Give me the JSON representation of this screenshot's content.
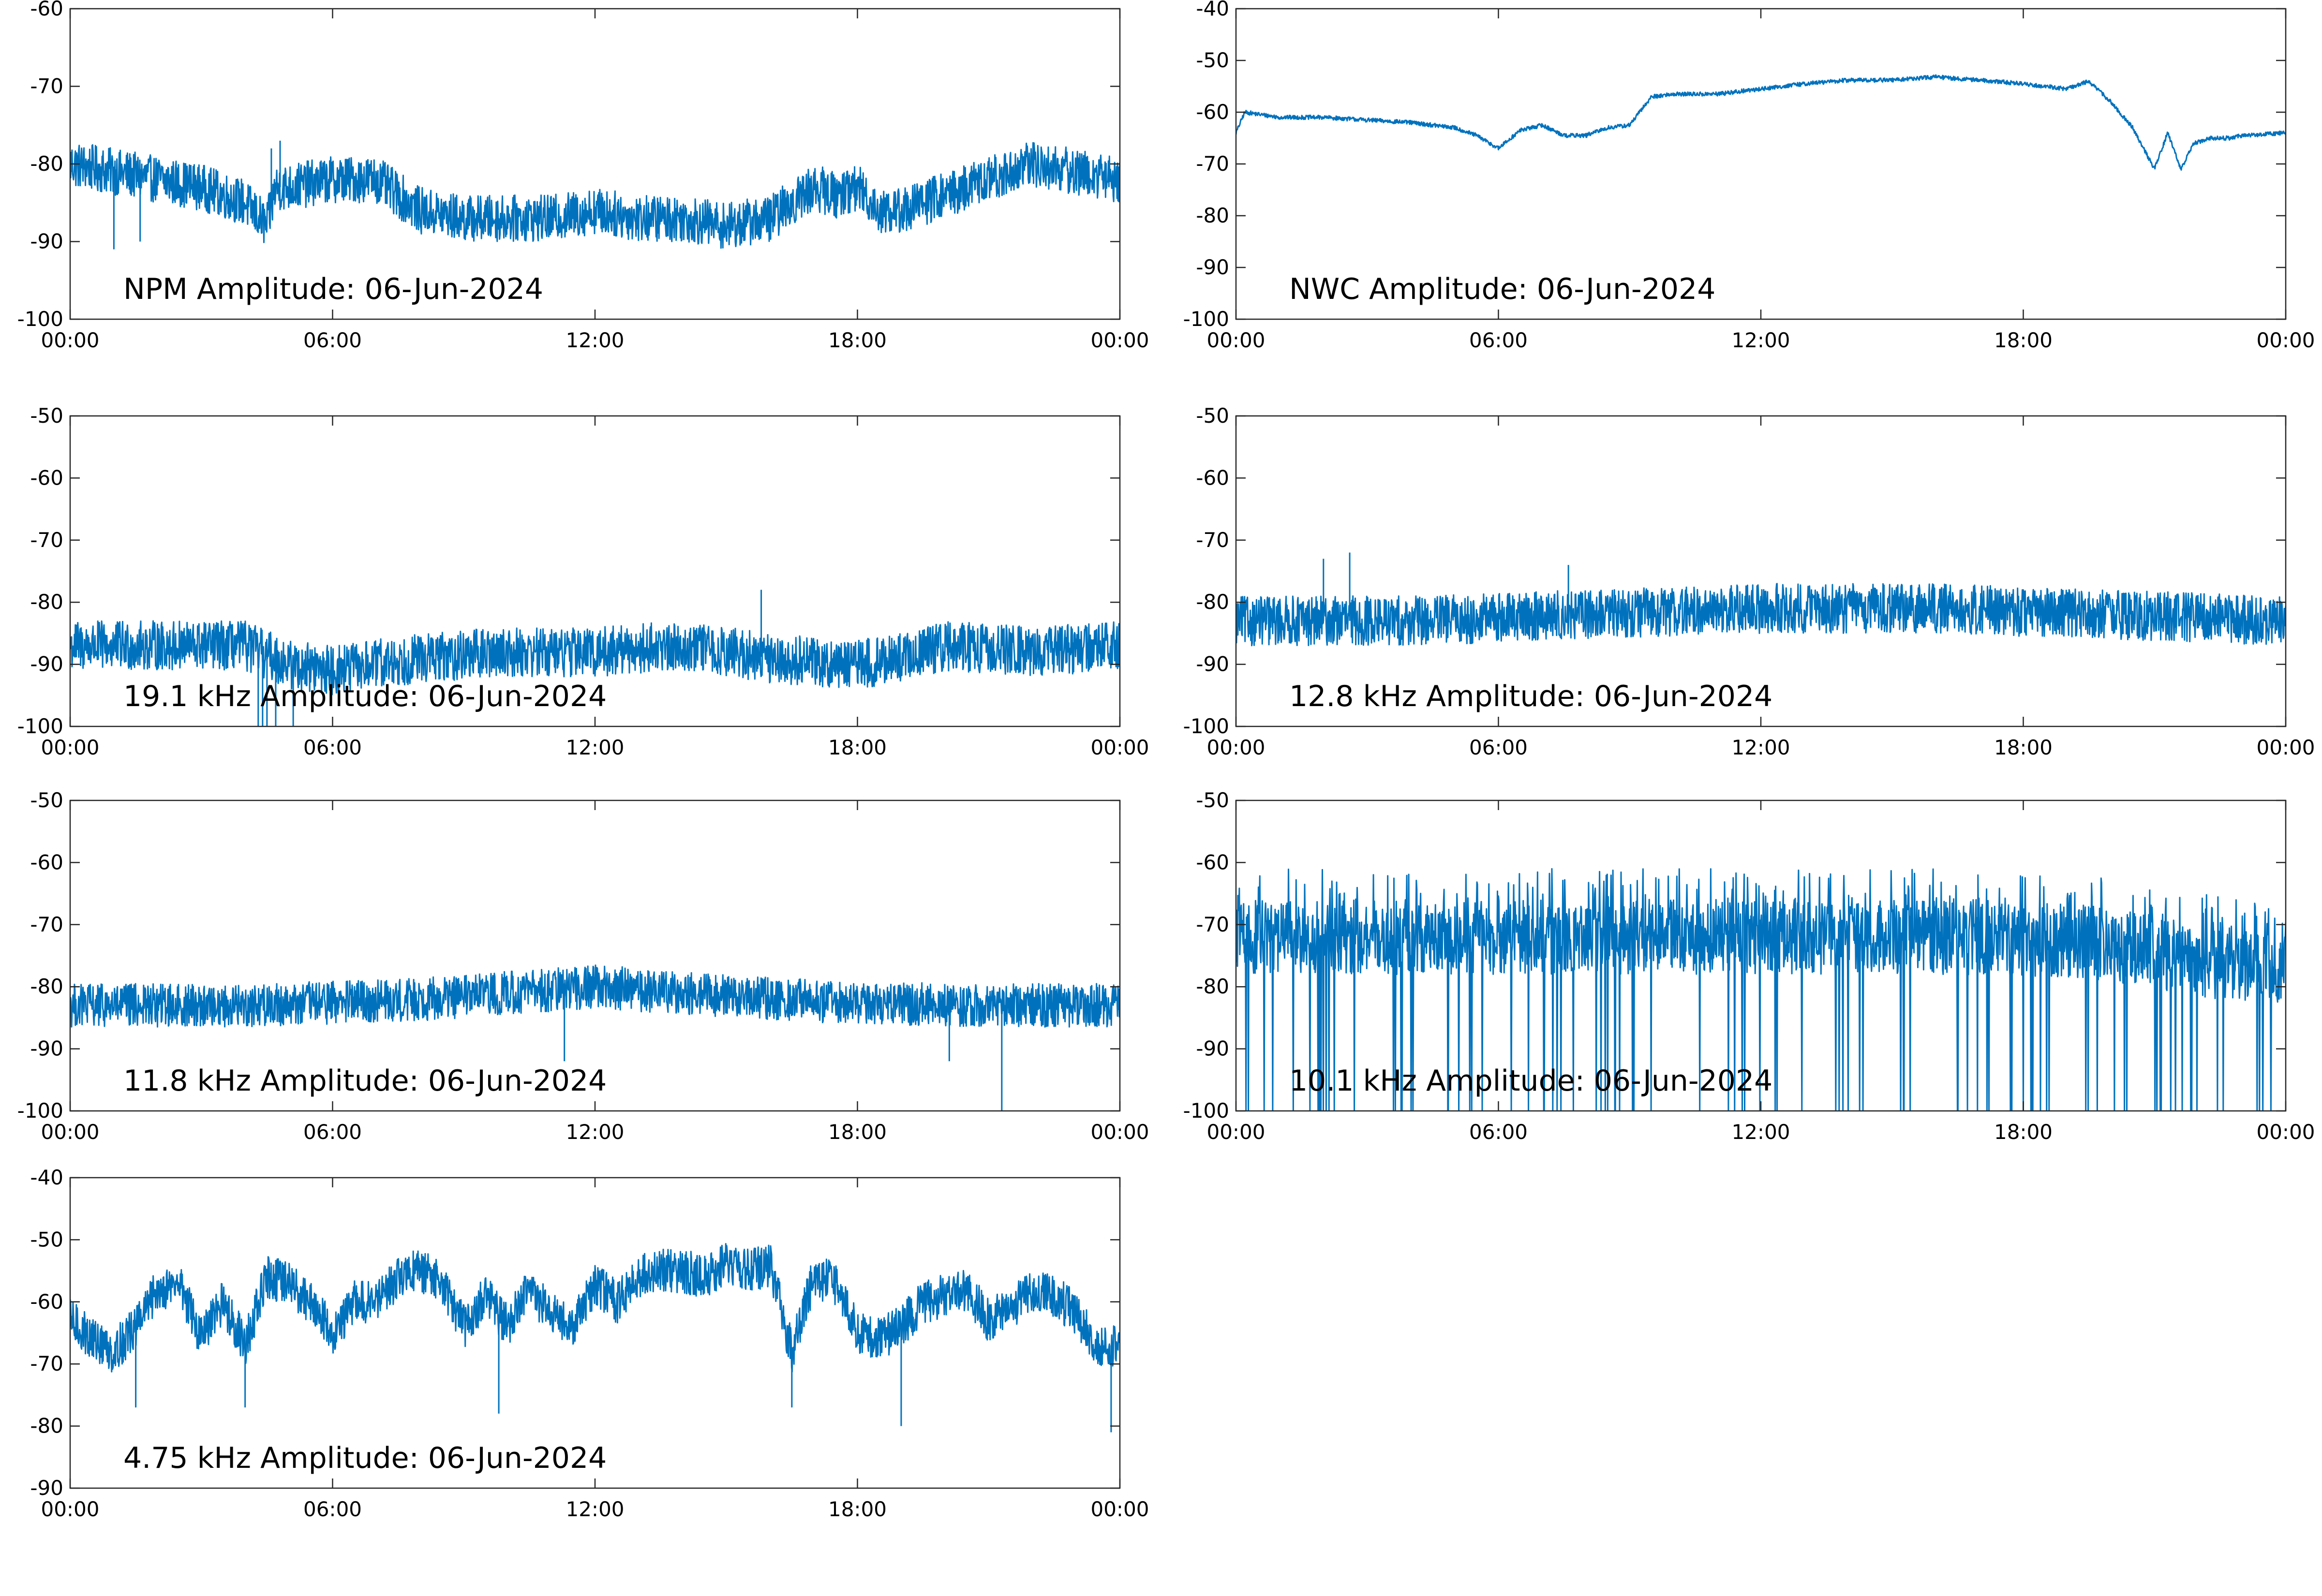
{
  "figure": {
    "line_color": "#0072BD",
    "x_tick_labels": [
      "00:00",
      "06:00",
      "12:00",
      "18:00",
      "00:00"
    ]
  },
  "chart_data": [
    {
      "type": "line",
      "title": "NPM Amplitude: 06-Jun-2024",
      "xlabel": "",
      "ylabel": "",
      "x_unit": "hours",
      "xlim": [
        0,
        24
      ],
      "ylim": [
        -100,
        -60
      ],
      "yticks": [
        -100,
        -90,
        -80,
        -70,
        -60
      ],
      "grid": false,
      "noise": 6,
      "spikes": [
        [
          1.0,
          -91
        ],
        [
          1.6,
          -90
        ],
        [
          4.6,
          -78
        ],
        [
          4.8,
          -77
        ]
      ],
      "x": [
        0,
        1,
        2,
        3,
        4,
        4.5,
        4.7,
        5,
        6,
        7,
        8,
        9,
        10,
        11,
        12,
        13,
        14,
        15,
        16,
        16.5,
        17,
        17.5,
        18,
        18.5,
        19,
        20,
        21,
        22,
        23,
        24
      ],
      "y": [
        -80,
        -81,
        -82,
        -83,
        -85,
        -88,
        -83,
        -83,
        -82,
        -82,
        -86,
        -87,
        -87,
        -87,
        -86,
        -87,
        -87,
        -88,
        -87,
        -85,
        -83,
        -84,
        -83,
        -86,
        -86,
        -84,
        -82,
        -80,
        -81,
        -82
      ]
    },
    {
      "type": "line",
      "title": "NWC Amplitude: 06-Jun-2024",
      "xlabel": "",
      "ylabel": "",
      "x_unit": "hours",
      "xlim": [
        0,
        24
      ],
      "ylim": [
        -100,
        -40
      ],
      "yticks": [
        -100,
        -90,
        -80,
        -70,
        -60,
        -50,
        -40
      ],
      "grid": false,
      "noise": 0.8,
      "spikes": [],
      "x": [
        0,
        0.2,
        1,
        2,
        3,
        4,
        5,
        5.5,
        6,
        6.5,
        7,
        7.5,
        8,
        8.5,
        9,
        9.5,
        10,
        11,
        12,
        13,
        14,
        15,
        16,
        17,
        18,
        19,
        19.5,
        20,
        20.5,
        21,
        21.3,
        21.6,
        21.9,
        22.3,
        22.7,
        23,
        24
      ],
      "y": [
        -64,
        -60,
        -61,
        -61,
        -61.5,
        -62,
        -63,
        -64.5,
        -67,
        -63.5,
        -62.5,
        -64.5,
        -64.5,
        -63,
        -62.5,
        -57,
        -56.5,
        -56.5,
        -55.5,
        -54.5,
        -53.8,
        -53.8,
        -53.2,
        -53.8,
        -54.5,
        -55.5,
        -54,
        -58,
        -63,
        -71,
        -64,
        -71,
        -66,
        -65,
        -65,
        -64.5,
        -64
      ]
    },
    {
      "type": "line",
      "title": "19.1 kHz Amplitude: 06-Jun-2024",
      "xlabel": "",
      "ylabel": "",
      "x_unit": "hours",
      "xlim": [
        0,
        24
      ],
      "ylim": [
        -100,
        -50
      ],
      "yticks": [
        -100,
        -90,
        -80,
        -70,
        -60,
        -50
      ],
      "grid": false,
      "noise": 8,
      "spikes": [
        [
          4.3,
          -100
        ],
        [
          4.4,
          -100
        ],
        [
          4.5,
          -100
        ],
        [
          4.7,
          -100
        ],
        [
          5.1,
          -100
        ],
        [
          15.8,
          -78
        ]
      ],
      "x": [
        0,
        2,
        4,
        5,
        6,
        8,
        10,
        12,
        14,
        16,
        18,
        19,
        20,
        22,
        24
      ],
      "y": [
        -87,
        -87,
        -87,
        -90,
        -91,
        -89,
        -88,
        -88,
        -87,
        -89,
        -90,
        -89,
        -87,
        -88,
        -87
      ]
    },
    {
      "type": "line",
      "title": "12.8 kHz Amplitude: 06-Jun-2024",
      "xlabel": "",
      "ylabel": "",
      "x_unit": "hours",
      "xlim": [
        0,
        24
      ],
      "ylim": [
        -100,
        -50
      ],
      "yticks": [
        -100,
        -90,
        -80,
        -70,
        -60,
        -50
      ],
      "grid": false,
      "noise": 8,
      "spikes": [
        [
          2.0,
          -73
        ],
        [
          2.6,
          -72
        ],
        [
          7.6,
          -74
        ]
      ],
      "x": [
        0,
        4,
        8,
        12,
        16,
        20,
        24
      ],
      "y": [
        -83,
        -83,
        -82,
        -81,
        -81,
        -82,
        -83
      ]
    },
    {
      "type": "line",
      "title": "11.8 kHz Amplitude: 06-Jun-2024",
      "xlabel": "",
      "ylabel": "",
      "x_unit": "hours",
      "xlim": [
        0,
        24
      ],
      "ylim": [
        -100,
        -50
      ],
      "yticks": [
        -100,
        -90,
        -80,
        -70,
        -60,
        -50
      ],
      "grid": false,
      "noise": 7,
      "spikes": [
        [
          11.3,
          -92
        ],
        [
          20.1,
          -92
        ],
        [
          21.3,
          -100
        ]
      ],
      "x": [
        0,
        4,
        8,
        12,
        16,
        20,
        24
      ],
      "y": [
        -83,
        -83,
        -82,
        -80,
        -82,
        -83,
        -83
      ]
    },
    {
      "type": "line",
      "title": "10.1 kHz Amplitude: 06-Jun-2024",
      "xlabel": "",
      "ylabel": "",
      "x_unit": "hours",
      "xlim": [
        0,
        24
      ],
      "ylim": [
        -100,
        -50
      ],
      "yticks": [
        -100,
        -90,
        -80,
        -70,
        -60,
        -50
      ],
      "grid": false,
      "noise": 10,
      "bursts": true,
      "spikes": [],
      "x": [
        0,
        4,
        8,
        12,
        16,
        20,
        22,
        24
      ],
      "y": [
        -72,
        -72,
        -72,
        -72,
        -72,
        -73,
        -76,
        -77
      ]
    },
    {
      "type": "line",
      "title": "4.75 kHz Amplitude: 06-Jun-2024",
      "xlabel": "",
      "ylabel": "",
      "x_unit": "hours",
      "xlim": [
        0,
        24
      ],
      "ylim": [
        -90,
        -40
      ],
      "yticks": [
        -90,
        -80,
        -70,
        -60,
        -50,
        -40
      ],
      "grid": false,
      "noise": 7,
      "spikes": [
        [
          1.5,
          -77
        ],
        [
          4.0,
          -77
        ],
        [
          9.8,
          -78
        ],
        [
          16.5,
          -77
        ],
        [
          19.0,
          -80
        ],
        [
          23.8,
          -81
        ]
      ],
      "x": [
        0,
        0.5,
        1,
        1.5,
        2,
        2.5,
        3,
        3.5,
        4,
        4.5,
        5,
        5.5,
        6,
        6.5,
        7,
        7.5,
        8,
        8.5,
        9,
        9.5,
        10,
        10.5,
        11,
        11.5,
        12,
        12.5,
        13,
        13.5,
        14,
        14.5,
        15,
        15.5,
        16,
        16.5,
        17,
        17.5,
        18,
        18.5,
        19,
        19.5,
        20,
        20.5,
        21,
        21.5,
        22,
        22.5,
        23,
        23.5,
        24
      ],
      "y": [
        -63,
        -66,
        -68,
        -64,
        -58,
        -57,
        -66,
        -60,
        -67,
        -56,
        -57,
        -60,
        -65,
        -60,
        -60,
        -56,
        -55,
        -57,
        -64,
        -59,
        -64,
        -58,
        -62,
        -64,
        -57,
        -60,
        -56,
        -55,
        -55,
        -56,
        -54,
        -55,
        -54,
        -68,
        -56,
        -57,
        -65,
        -66,
        -64,
        -60,
        -59,
        -58,
        -63,
        -61,
        -58,
        -59,
        -62,
        -67,
        -67
      ]
    }
  ]
}
